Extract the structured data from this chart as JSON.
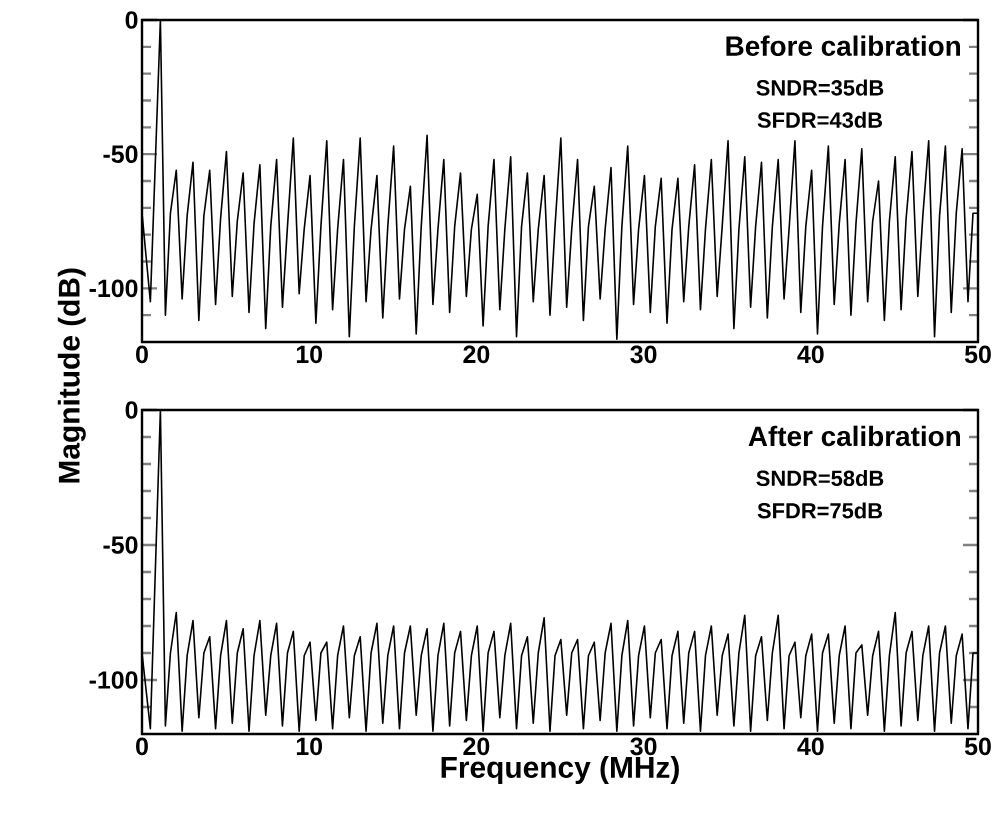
{
  "chart_data": [
    {
      "type": "line",
      "annotations": [
        "Before calibration",
        "SNDR=35dB",
        "SFDR=43dB"
      ],
      "ylabel": "Magnitude (dB)",
      "xlim": [
        0,
        50
      ],
      "ylim": [
        -120,
        0
      ],
      "xticks": [
        0,
        10,
        20,
        30,
        40,
        50
      ],
      "yticks": [
        0,
        {
          "value": -10,
          "label": null
        },
        {
          "value": -20,
          "label": null
        },
        {
          "value": -30,
          "label": null
        },
        {
          "value": -40,
          "label": null
        },
        -50,
        {
          "value": -60,
          "label": null
        },
        {
          "value": -70,
          "label": null
        },
        {
          "value": -80,
          "label": null
        },
        {
          "value": -90,
          "label": null
        },
        -100,
        {
          "value": -110,
          "label": null
        }
      ],
      "x": [
        0,
        0.5,
        1.1,
        1.4,
        1.7,
        2.05,
        2.4,
        2.7,
        3.05,
        3.4,
        3.7,
        4.05,
        4.4,
        4.7,
        5.05,
        5.4,
        5.7,
        6.05,
        6.4,
        6.7,
        7.05,
        7.4,
        7.7,
        8.05,
        8.4,
        8.7,
        9.05,
        9.4,
        9.7,
        10.05,
        10.4,
        10.7,
        11.05,
        11.4,
        11.7,
        12.05,
        12.4,
        12.7,
        13.05,
        13.4,
        13.7,
        14.05,
        14.4,
        14.7,
        15.05,
        15.4,
        15.7,
        16.05,
        16.4,
        16.7,
        17.05,
        17.4,
        17.7,
        18.05,
        18.4,
        18.7,
        19.05,
        19.4,
        19.7,
        20.05,
        20.4,
        20.7,
        21.05,
        21.4,
        21.7,
        22.05,
        22.4,
        22.7,
        23.05,
        23.4,
        23.7,
        24.05,
        24.4,
        24.7,
        25.05,
        25.4,
        25.7,
        26.05,
        26.4,
        26.7,
        27.05,
        27.4,
        27.7,
        28.05,
        28.4,
        28.7,
        29.05,
        29.4,
        29.7,
        30.05,
        30.4,
        30.7,
        31.05,
        31.4,
        31.7,
        32.05,
        32.4,
        32.7,
        33.05,
        33.4,
        33.7,
        34.05,
        34.4,
        34.7,
        35.05,
        35.4,
        35.7,
        36.05,
        36.4,
        36.7,
        37.05,
        37.4,
        37.7,
        38.05,
        38.4,
        38.7,
        39.05,
        39.4,
        39.7,
        40.05,
        40.4,
        40.7,
        41.05,
        41.4,
        41.7,
        42.05,
        42.4,
        42.7,
        43.05,
        43.4,
        43.7,
        44.05,
        44.4,
        44.7,
        45.05,
        45.4,
        45.7,
        46.05,
        46.4,
        46.7,
        47.05,
        47.4,
        47.7,
        48.05,
        48.4,
        48.7,
        49.05,
        49.4,
        49.7,
        50
      ],
      "series": [
        {
          "color": "#000000",
          "values": [
            -72,
            -105,
            0,
            -110,
            -72,
            -56,
            -104,
            -73,
            -53,
            -112,
            -73,
            -56,
            -106,
            -74,
            -49,
            -103,
            -75,
            -57,
            -109,
            -76,
            -54,
            -115,
            -77,
            -52,
            -107,
            -77,
            -44,
            -102,
            -78,
            -58,
            -113,
            -77,
            -45,
            -108,
            -78,
            -52,
            -118,
            -77,
            -44,
            -105,
            -78,
            -58,
            -111,
            -77,
            -47,
            -104,
            -78,
            -62,
            -117,
            -77,
            -43,
            -106,
            -78,
            -52,
            -109,
            -77,
            -57,
            -103,
            -78,
            -65,
            -114,
            -77,
            -52,
            -108,
            -78,
            -51,
            -118,
            -77,
            -57,
            -105,
            -78,
            -58,
            -110,
            -77,
            -44,
            -107,
            -78,
            -52,
            -112,
            -77,
            -62,
            -104,
            -78,
            -55,
            -119,
            -77,
            -47,
            -106,
            -78,
            -58,
            -109,
            -77,
            -59,
            -113,
            -78,
            -59,
            -105,
            -77,
            -54,
            -108,
            -78,
            -52,
            -103,
            -77,
            -45,
            -115,
            -78,
            -51,
            -107,
            -77,
            -53,
            -111,
            -77,
            -52,
            -104,
            -78,
            -45,
            -109,
            -77,
            -56,
            -117,
            -77,
            -47,
            -106,
            -76,
            -52,
            -110,
            -76,
            -48,
            -105,
            -75,
            -60,
            -112,
            -75,
            -51,
            -108,
            -74,
            -49,
            -103,
            -73,
            -45,
            -118,
            -73,
            -47,
            -109,
            -72,
            -48,
            -105,
            -72,
            -72
          ]
        }
      ]
    },
    {
      "type": "line",
      "annotations": [
        "After calibration",
        "SNDR=58dB",
        "SFDR=75dB"
      ],
      "xlabel": "Frequency (MHz)",
      "xlim": [
        0,
        50
      ],
      "ylim": [
        -120,
        0
      ],
      "xticks": [
        0,
        10,
        20,
        30,
        40,
        50
      ],
      "yticks": [
        0,
        {
          "value": -10,
          "label": null
        },
        {
          "value": -20,
          "label": null
        },
        {
          "value": -30,
          "label": null
        },
        {
          "value": -40,
          "label": null
        },
        -50,
        {
          "value": -60,
          "label": null
        },
        {
          "value": -70,
          "label": null
        },
        {
          "value": -80,
          "label": null
        },
        {
          "value": -90,
          "label": null
        },
        -100,
        {
          "value": -110,
          "label": null
        }
      ],
      "x": [
        0,
        0.5,
        1.1,
        1.4,
        1.7,
        2.05,
        2.4,
        2.7,
        3.05,
        3.4,
        3.7,
        4.05,
        4.4,
        4.7,
        5.05,
        5.4,
        5.7,
        6.05,
        6.4,
        6.7,
        7.05,
        7.4,
        7.7,
        8.05,
        8.4,
        8.7,
        9.05,
        9.4,
        9.7,
        10.05,
        10.4,
        10.7,
        11.05,
        11.4,
        11.7,
        12.05,
        12.4,
        12.7,
        13.05,
        13.4,
        13.7,
        14.05,
        14.4,
        14.7,
        15.05,
        15.4,
        15.7,
        16.05,
        16.4,
        16.7,
        17.05,
        17.4,
        17.7,
        18.05,
        18.4,
        18.7,
        19.05,
        19.4,
        19.7,
        20.05,
        20.4,
        20.7,
        21.05,
        21.4,
        21.7,
        22.05,
        22.4,
        22.7,
        23.05,
        23.4,
        23.7,
        24.05,
        24.4,
        24.7,
        25.05,
        25.4,
        25.7,
        26.05,
        26.4,
        26.7,
        27.05,
        27.4,
        27.7,
        28.05,
        28.4,
        28.7,
        29.05,
        29.4,
        29.7,
        30.05,
        30.4,
        30.7,
        31.05,
        31.4,
        31.7,
        32.05,
        32.4,
        32.7,
        33.05,
        33.4,
        33.7,
        34.05,
        34.4,
        34.7,
        35.05,
        35.4,
        35.7,
        36.05,
        36.4,
        36.7,
        37.05,
        37.4,
        37.7,
        38.05,
        38.4,
        38.7,
        39.05,
        39.4,
        39.7,
        40.05,
        40.4,
        40.7,
        41.05,
        41.4,
        41.7,
        42.05,
        42.4,
        42.7,
        43.05,
        43.4,
        43.7,
        44.05,
        44.4,
        44.7,
        45.05,
        45.4,
        45.7,
        46.05,
        46.4,
        46.7,
        47.05,
        47.4,
        47.7,
        48.05,
        48.4,
        48.7,
        49.05,
        49.4,
        49.7,
        50
      ],
      "series": [
        {
          "color": "#000000",
          "values": [
            -90,
            -118,
            0,
            -117,
            -90,
            -75,
            -119,
            -91,
            -78,
            -114,
            -90,
            -84,
            -118,
            -91,
            -78,
            -116,
            -90,
            -81,
            -119,
            -91,
            -78,
            -113,
            -91,
            -79,
            -117,
            -90,
            -82,
            -119,
            -91,
            -86,
            -115,
            -90,
            -86,
            -118,
            -91,
            -80,
            -114,
            -91,
            -84,
            -119,
            -90,
            -79,
            -116,
            -91,
            -80,
            -118,
            -90,
            -80,
            -113,
            -91,
            -81,
            -119,
            -91,
            -79,
            -117,
            -90,
            -82,
            -115,
            -91,
            -80,
            -119,
            -90,
            -82,
            -114,
            -91,
            -79,
            -118,
            -91,
            -84,
            -116,
            -90,
            -77,
            -119,
            -91,
            -85,
            -113,
            -90,
            -85,
            -118,
            -91,
            -86,
            -115,
            -90,
            -79,
            -119,
            -91,
            -78,
            -117,
            -91,
            -80,
            -114,
            -90,
            -85,
            -118,
            -91,
            -82,
            -116,
            -90,
            -82,
            -119,
            -91,
            -80,
            -113,
            -91,
            -83,
            -117,
            -90,
            -76,
            -119,
            -91,
            -84,
            -115,
            -90,
            -76,
            -118,
            -91,
            -86,
            -114,
            -91,
            -83,
            -119,
            -90,
            -83,
            -116,
            -91,
            -80,
            -118,
            -90,
            -87,
            -113,
            -91,
            -82,
            -119,
            -91,
            -75,
            -117,
            -90,
            -82,
            -115,
            -91,
            -80,
            -119,
            -90,
            -80,
            -116,
            -91,
            -83,
            -118,
            -90,
            -90
          ]
        }
      ]
    }
  ]
}
